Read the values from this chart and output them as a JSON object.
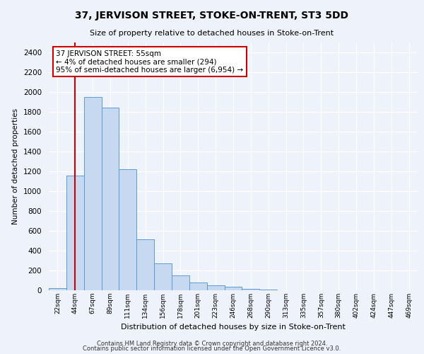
{
  "title": "37, JERVISON STREET, STOKE-ON-TRENT, ST3 5DD",
  "subtitle": "Size of property relative to detached houses in Stoke-on-Trent",
  "xlabel": "Distribution of detached houses by size in Stoke-on-Trent",
  "ylabel": "Number of detached properties",
  "bin_labels": [
    "22sqm",
    "44sqm",
    "67sqm",
    "89sqm",
    "111sqm",
    "134sqm",
    "156sqm",
    "178sqm",
    "201sqm",
    "223sqm",
    "246sqm",
    "268sqm",
    "290sqm",
    "313sqm",
    "335sqm",
    "357sqm",
    "380sqm",
    "402sqm",
    "424sqm",
    "447sqm",
    "469sqm"
  ],
  "bar_heights": [
    25,
    1155,
    1950,
    1845,
    1225,
    515,
    275,
    150,
    80,
    52,
    38,
    12,
    8,
    3,
    2,
    1,
    0,
    0,
    0,
    0,
    0
  ],
  "bar_color": "#c6d9f0",
  "bar_edge_color": "#5b9bd5",
  "ylim": [
    0,
    2500
  ],
  "yticks": [
    0,
    200,
    400,
    600,
    800,
    1000,
    1200,
    1400,
    1600,
    1800,
    2000,
    2200,
    2400
  ],
  "annotation_box_title": "37 JERVISON STREET: 55sqm",
  "annotation_line1": "← 4% of detached houses are smaller (294)",
  "annotation_line2": "95% of semi-detached houses are larger (6,954) →",
  "annotation_box_color": "#ffffff",
  "annotation_box_edge": "#cc0000",
  "property_line_color": "#cc0000",
  "footer1": "Contains HM Land Registry data © Crown copyright and database right 2024.",
  "footer2": "Contains public sector information licensed under the Open Government Licence v3.0.",
  "background_color": "#eef2fa"
}
